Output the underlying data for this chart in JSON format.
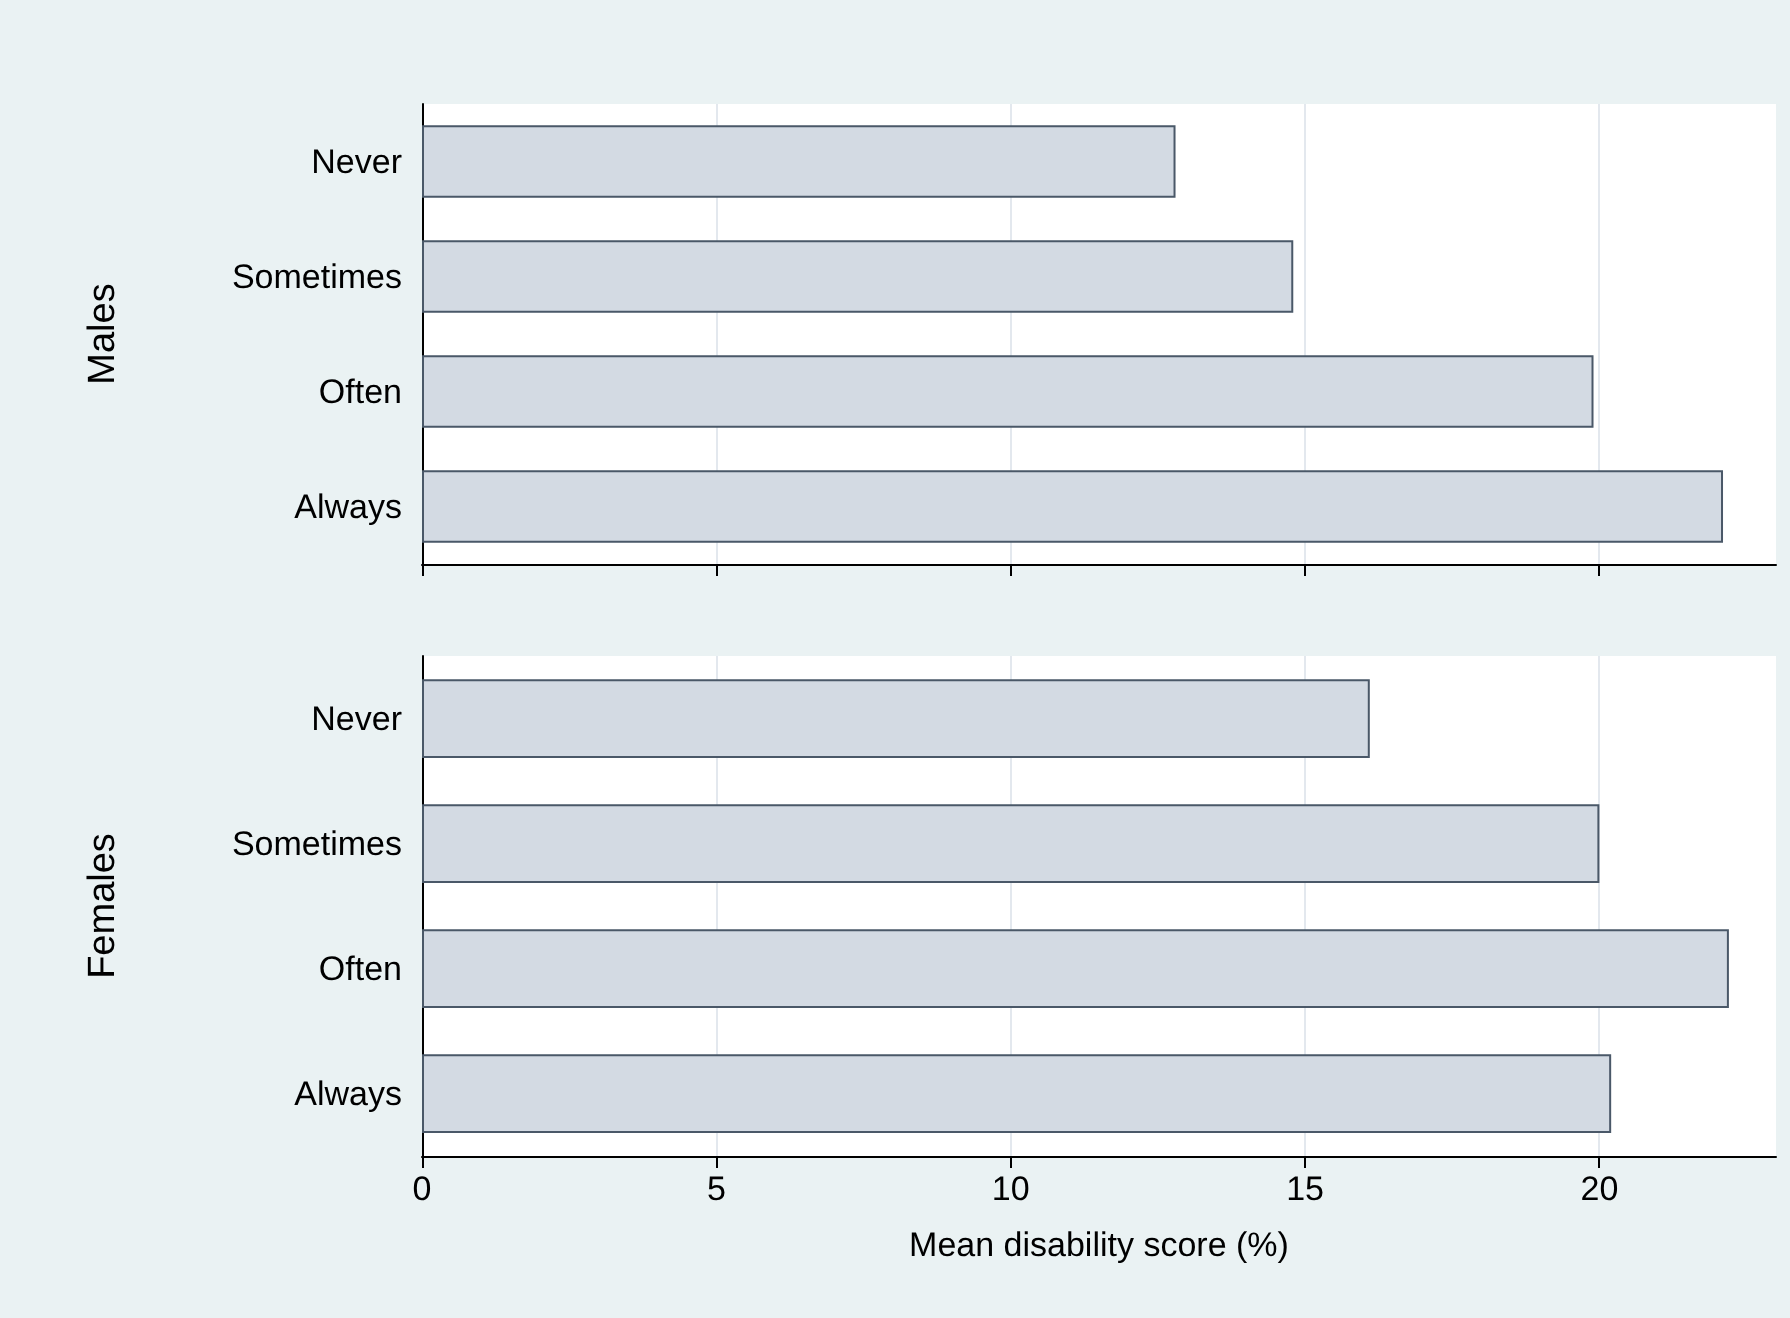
{
  "chart_data": [
    {
      "type": "bar",
      "orientation": "horizontal",
      "ylabel": "Males",
      "categories": [
        "Never",
        "Sometimes",
        "Often",
        "Always"
      ],
      "values": [
        12.8,
        14.8,
        19.9,
        22.1
      ],
      "color": "#d3dae3",
      "xlim": [
        0,
        23
      ],
      "xticks": [
        0,
        5,
        10,
        15,
        20
      ],
      "grid": "x",
      "tick_labels": "y"
    },
    {
      "type": "bar",
      "orientation": "horizontal",
      "ylabel": "Females",
      "xlabel": "Mean disability score (%)",
      "categories": [
        "Never",
        "Sometimes",
        "Often",
        "Always"
      ],
      "values": [
        16.1,
        20.0,
        22.2,
        20.2
      ],
      "color": "#d3dae3",
      "xlim": [
        0,
        23
      ],
      "xticks": [
        0,
        5,
        10,
        15,
        20
      ],
      "grid": "x"
    }
  ]
}
